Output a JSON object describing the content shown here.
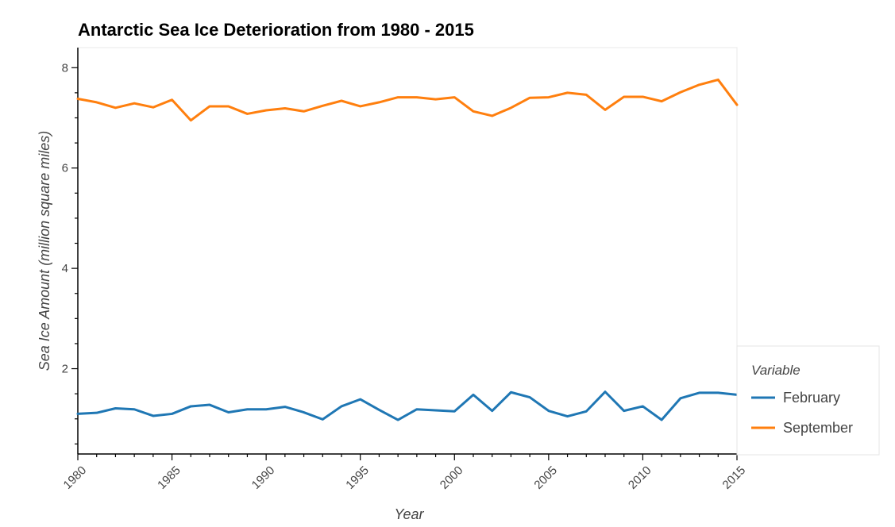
{
  "chart_data": {
    "type": "line",
    "title": "Antarctic Sea Ice Deterioration from 1980 - 2015",
    "xlabel": "Year",
    "ylabel": "Sea Ice Amount (million square miles)",
    "xlim": [
      1980,
      2015
    ],
    "ylim": [
      0.3,
      8.4
    ],
    "x_ticks": [
      1980,
      1985,
      1990,
      1995,
      2000,
      2005,
      2010,
      2015
    ],
    "x_tick_labels": [
      "1980",
      "1985",
      "1990",
      "1995",
      "2000",
      "2005",
      "2010",
      "2015"
    ],
    "y_ticks": [
      2,
      4,
      6,
      8
    ],
    "y_tick_labels": [
      "2",
      "4",
      "6",
      "8"
    ],
    "grid": false,
    "legend": {
      "title": "Variable",
      "placement": "bottom-right-outside"
    },
    "x": [
      1980,
      1981,
      1982,
      1983,
      1984,
      1985,
      1986,
      1987,
      1988,
      1989,
      1990,
      1991,
      1992,
      1993,
      1994,
      1995,
      1996,
      1997,
      1998,
      1999,
      2000,
      2001,
      2002,
      2003,
      2004,
      2005,
      2006,
      2007,
      2008,
      2009,
      2010,
      2011,
      2012,
      2013,
      2014,
      2015
    ],
    "series": [
      {
        "name": "February",
        "color": "#1f77b4",
        "values": [
          1.1,
          1.12,
          1.21,
          1.19,
          1.06,
          1.1,
          1.25,
          1.28,
          1.13,
          1.19,
          1.19,
          1.24,
          1.13,
          0.99,
          1.25,
          1.39,
          1.18,
          0.98,
          1.19,
          1.17,
          1.15,
          1.48,
          1.16,
          1.53,
          1.43,
          1.16,
          1.05,
          1.15,
          1.54,
          1.16,
          1.25,
          0.98,
          1.41,
          1.52,
          1.52,
          1.48
        ]
      },
      {
        "name": "September",
        "color": "#ff7f0e",
        "values": [
          7.38,
          7.31,
          7.2,
          7.29,
          7.21,
          7.36,
          6.95,
          7.23,
          7.23,
          7.08,
          7.15,
          7.19,
          7.13,
          7.24,
          7.34,
          7.23,
          7.31,
          7.41,
          7.41,
          7.37,
          7.41,
          7.13,
          7.04,
          7.2,
          7.4,
          7.41,
          7.5,
          7.46,
          7.16,
          7.42,
          7.42,
          7.33,
          7.51,
          7.66,
          7.76,
          7.26
        ]
      }
    ]
  }
}
